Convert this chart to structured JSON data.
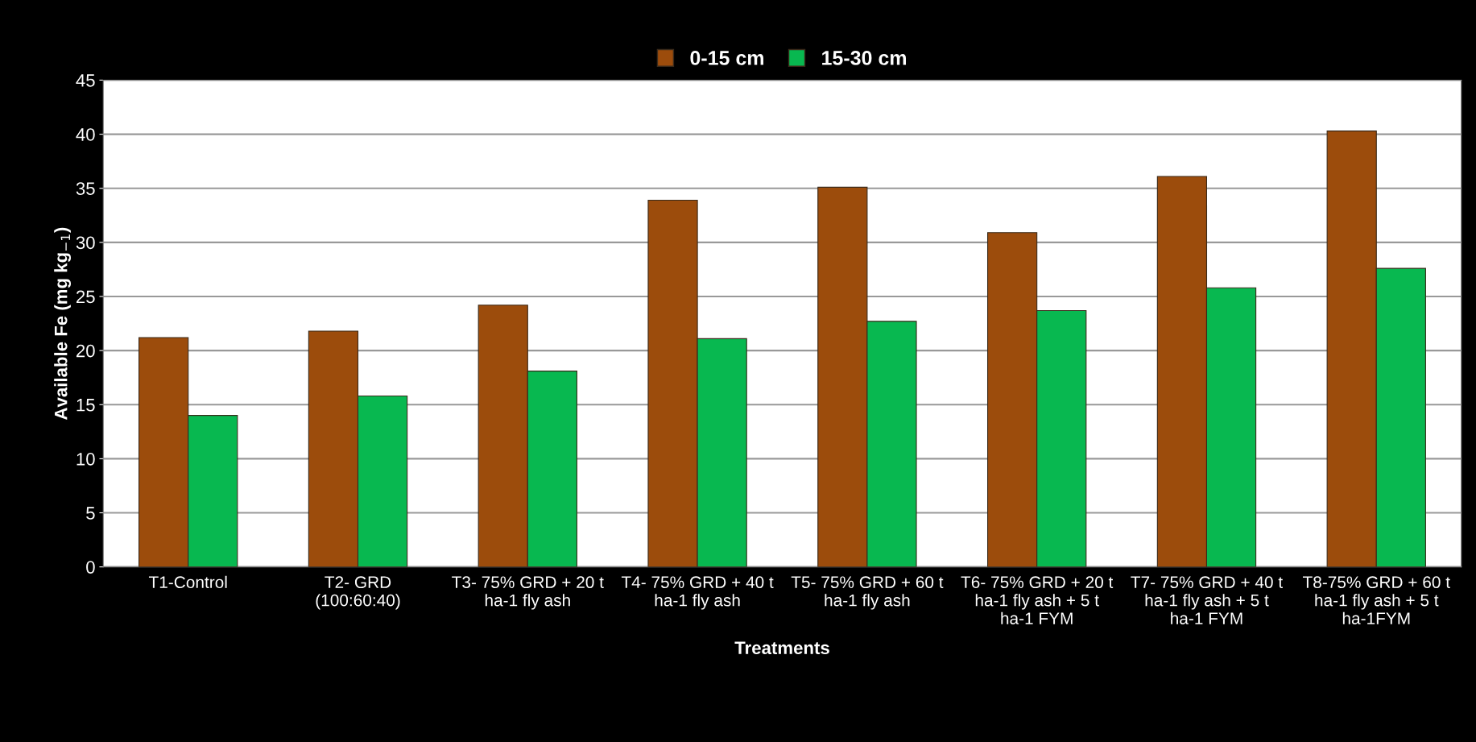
{
  "chart_data": {
    "type": "bar",
    "xlabel": "Treatments",
    "ylabel": "Available Fe (mg kg$_{−1}$)",
    "categories": [
      "T1-Control",
      "T2- GRD\n(100:60:40)",
      "T3- 75% GRD + 20 t\nha-1 fly ash",
      "T4- 75% GRD + 40 t\nha-1 fly ash",
      "T5- 75% GRD + 60 t\nha-1 fly ash",
      "T6- 75% GRD + 20 t\nha-1 fly ash + 5 t\nha-1 FYM",
      "T7- 75% GRD + 40 t\nha-1 fly ash + 5 t\nha-1 FYM",
      "T8-75% GRD + 60 t\nha-1 fly ash + 5 t\nha-1FYM"
    ],
    "series": [
      {
        "name": "0-15 cm",
        "color": "#9c4c0c",
        "values": [
          21.2,
          21.8,
          24.2,
          33.9,
          35.1,
          30.9,
          36.1,
          40.3
        ]
      },
      {
        "name": "15-30 cm",
        "color": "#08b850",
        "values": [
          14.0,
          15.8,
          18.1,
          21.1,
          22.7,
          23.7,
          25.8,
          27.6
        ]
      }
    ],
    "ylim": [
      0,
      45
    ],
    "yticks": [
      0,
      5,
      10,
      15,
      20,
      25,
      30,
      35,
      40,
      45
    ],
    "grid": "y",
    "legend": "top"
  }
}
